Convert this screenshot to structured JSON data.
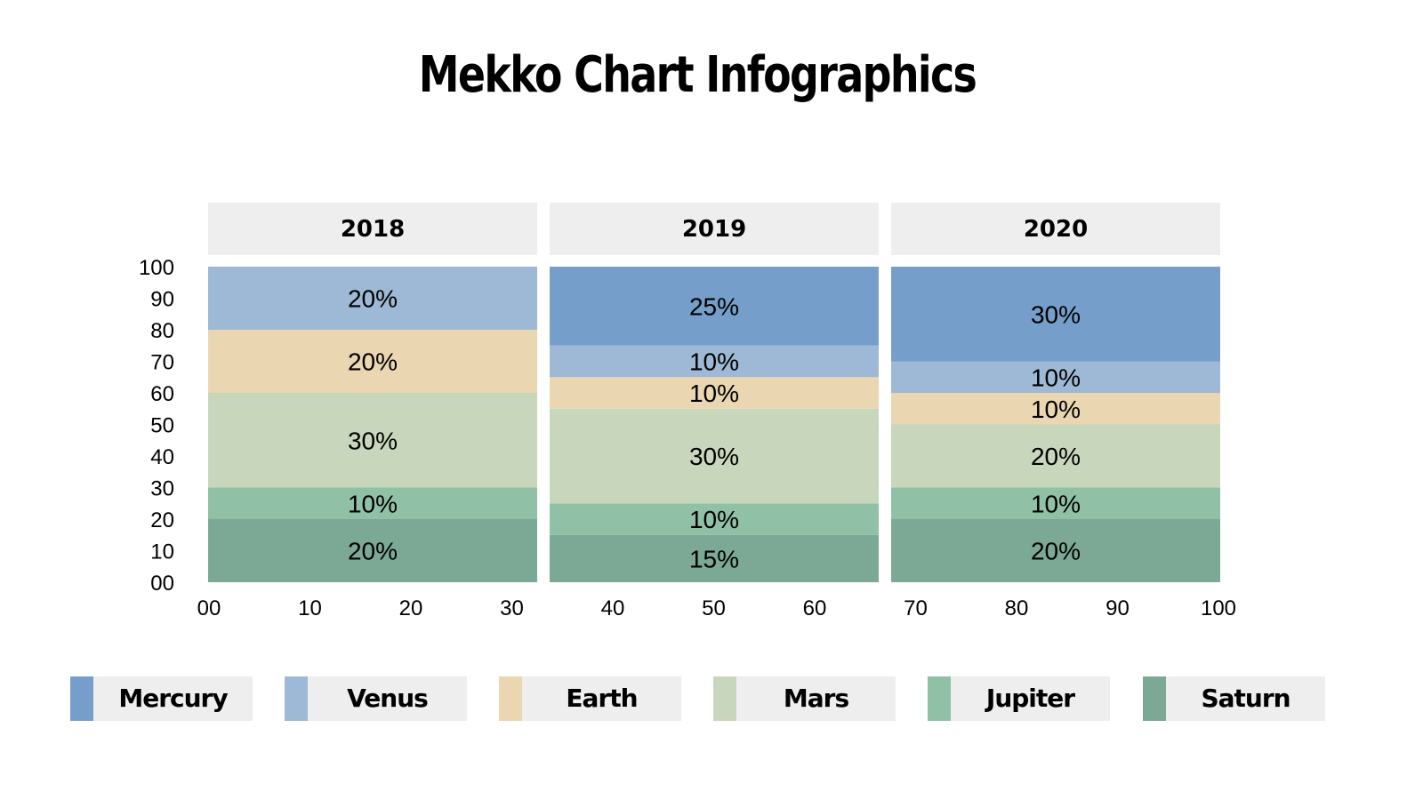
{
  "title": "Mekko Chart Infographics",
  "chart_data": {
    "type": "mekko",
    "title": "Mekko Chart Infographics",
    "categories": [
      "2018",
      "2019",
      "2020"
    ],
    "x_ticks": [
      "00",
      "10",
      "20",
      "30",
      "40",
      "50",
      "60",
      "70",
      "80",
      "90",
      "100"
    ],
    "y_ticks": [
      "00",
      "10",
      "20",
      "30",
      "40",
      "50",
      "60",
      "70",
      "80",
      "90",
      "100"
    ],
    "xlim": [
      0,
      100
    ],
    "ylim": [
      0,
      100
    ],
    "series": [
      {
        "name": "Mercury",
        "color": "#759fca",
        "values": [
          0,
          25,
          30
        ]
      },
      {
        "name": "Venus",
        "color": "#9db9d5",
        "values": [
          20,
          10,
          10
        ]
      },
      {
        "name": "Earth",
        "color": "#ead6b0",
        "values": [
          20,
          10,
          10
        ]
      },
      {
        "name": "Mars",
        "color": "#c8d7bb",
        "values": [
          30,
          30,
          20
        ]
      },
      {
        "name": "Jupiter",
        "color": "#90c0a6",
        "values": [
          10,
          10,
          10
        ]
      },
      {
        "name": "Saturn",
        "color": "#7ba996",
        "values": [
          20,
          15,
          20
        ]
      }
    ],
    "legend": "bottom",
    "grid": false
  }
}
